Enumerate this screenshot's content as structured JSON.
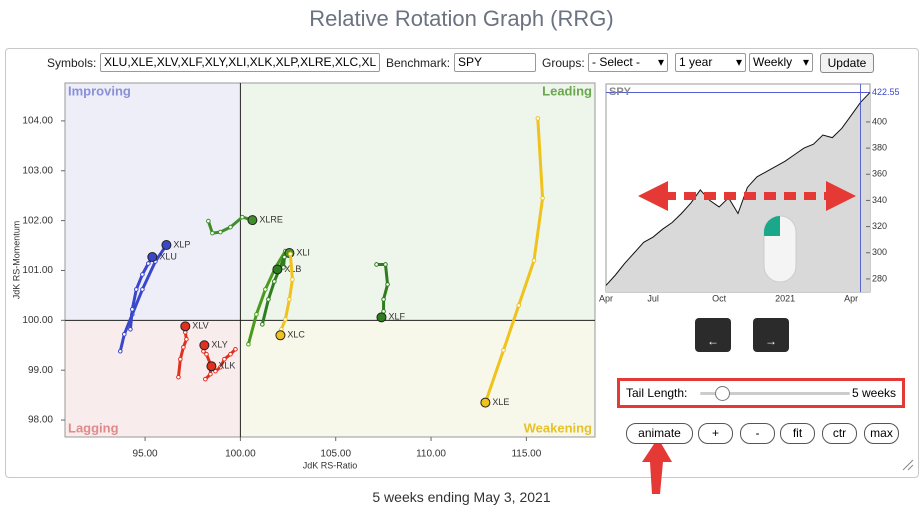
{
  "header": {
    "title": "Relative Rotation Graph (RRG)"
  },
  "toolbar": {
    "symbols_label": "Symbols:",
    "symbols": "XLU,XLE,XLV,XLF,XLY,XLI,XLK,XLP,XLRE,XLC,XL",
    "benchmark_label": "Benchmark:",
    "benchmark": "SPY",
    "groups_label": "Groups:",
    "groups": "- Select -",
    "period": "1 year",
    "frequency": "Weekly",
    "update": "Update"
  },
  "chart_data": [
    {
      "type": "scatter",
      "x_label": "JdK RS-Ratio",
      "y_label": "JdK RS-Momentum",
      "xlim": [
        90.8,
        118.6
      ],
      "ylim": [
        97.66,
        104.76
      ],
      "xticks": [
        {
          "value": 95,
          "label": "95.00"
        },
        {
          "value": 100,
          "label": "100.00"
        },
        {
          "value": 105,
          "label": "105.00"
        },
        {
          "value": 110,
          "label": "110.00"
        },
        {
          "value": 115,
          "label": "115.00"
        }
      ],
      "yticks": [
        {
          "value": 98,
          "label": "98.00"
        },
        {
          "value": 99,
          "label": "99.00"
        },
        {
          "value": 100,
          "label": "100.00"
        },
        {
          "value": 101,
          "label": "101.00"
        },
        {
          "value": 102,
          "label": "102.00"
        },
        {
          "value": 103,
          "label": "103.00"
        },
        {
          "value": 104,
          "label": "104.00"
        }
      ],
      "crosshair": [
        100,
        100
      ],
      "quadrants": [
        {
          "name": "Improving",
          "color": "#8a8fd6"
        },
        {
          "name": "Leading",
          "color": "#6aa84f"
        },
        {
          "name": "Lagging",
          "color": "#e08a8a"
        },
        {
          "name": "Weakening",
          "color": "#e6c229"
        }
      ],
      "series": [
        {
          "name": "XLE",
          "color": "#f0c21c",
          "x": [
            115.6,
            115.85,
            115.4,
            114.6,
            113.8,
            112.85
          ],
          "values": [
            104.05,
            102.45,
            101.2,
            100.3,
            99.4,
            98.35
          ]
        },
        {
          "name": "XLF",
          "color": "#2f7d1f",
          "x": [
            107.14,
            107.61,
            107.72,
            107.51,
            107.51,
            107.4
          ],
          "values": [
            101.12,
            101.12,
            100.72,
            100.42,
            100.18,
            100.06
          ]
        },
        {
          "name": "XLRE",
          "color": "#3e8e2a",
          "x": [
            98.32,
            98.53,
            98.95,
            99.48,
            100.1,
            100.63
          ],
          "values": [
            101.99,
            101.75,
            101.77,
            101.87,
            102.07,
            102.01
          ]
        },
        {
          "name": "XLI",
          "color": "#4a9a1e",
          "x": [
            100.42,
            100.84,
            101.31,
            101.84,
            102.36,
            102.57
          ],
          "values": [
            99.52,
            100.12,
            100.62,
            101.06,
            101.39,
            101.35
          ]
        },
        {
          "name": "XLB",
          "color": "#2e7d1f",
          "x": [
            101.15,
            101.47,
            101.78,
            102.31,
            102.26,
            101.94
          ],
          "values": [
            99.92,
            100.42,
            100.78,
            101.27,
            101.06,
            101.02
          ]
        },
        {
          "name": "XLC",
          "color": "#f0c21c",
          "x": [
            102.62,
            102.73,
            102.57,
            102.36,
            102.15,
            102.1
          ],
          "values": [
            101.33,
            100.82,
            100.42,
            100.02,
            99.82,
            99.7
          ]
        },
        {
          "name": "XLP",
          "color": "#3b47c9",
          "x": [
            93.7,
            93.91,
            94.33,
            94.86,
            95.54,
            96.12
          ],
          "values": [
            99.38,
            99.72,
            100.12,
            100.62,
            101.18,
            101.51
          ]
        },
        {
          "name": "XLU",
          "color": "#3b47c9",
          "x": [
            94.23,
            94.33,
            94.54,
            94.86,
            95.17,
            95.38
          ],
          "values": [
            99.82,
            100.22,
            100.62,
            100.92,
            101.14,
            101.27
          ]
        },
        {
          "name": "XLV",
          "color": "#e0301e",
          "x": [
            96.75,
            96.85,
            97.01,
            97.17,
            97.11,
            97.11
          ],
          "values": [
            98.86,
            99.22,
            99.46,
            99.62,
            99.76,
            99.88
          ]
        },
        {
          "name": "XLY",
          "color": "#e0301e",
          "x": [
            98.16,
            98.43,
            98.43,
            98.22,
            98.06,
            98.11
          ],
          "values": [
            98.82,
            98.92,
            99.12,
            99.32,
            99.38,
            99.5
          ]
        },
        {
          "name": "XLK",
          "color": "#e0301e",
          "x": [
            99.74,
            99.48,
            99.16,
            98.95,
            98.69,
            98.48
          ],
          "values": [
            99.42,
            99.32,
            99.22,
            99.06,
            98.98,
            99.08
          ]
        }
      ]
    },
    {
      "type": "line",
      "title": "SPY",
      "color": "#111111",
      "last_color": "#3b47c9",
      "categories": [
        "Apr",
        null,
        null,
        null,
        null,
        "Jul",
        null,
        null,
        null,
        null,
        null,
        null,
        "Oct",
        null,
        null,
        null,
        null,
        null,
        null,
        "2021",
        null,
        null,
        null,
        null,
        null,
        null,
        "Apr",
        null,
        null
      ],
      "values": [
        275,
        283,
        292,
        300,
        308,
        312,
        318,
        323,
        330,
        338,
        348,
        340,
        335,
        342,
        330,
        350,
        358,
        362,
        366,
        370,
        375,
        380,
        383,
        390,
        388,
        395,
        405,
        415,
        422.55
      ],
      "ylim": [
        270,
        429
      ],
      "yticks": [
        280,
        300,
        320,
        340,
        360,
        380,
        400
      ]
    }
  ],
  "controls": {
    "tail_label": "Tail Length:",
    "tail_value": "5 weeks",
    "buttons": [
      "animate",
      "+",
      "-",
      "fit",
      "ctr",
      "max"
    ]
  },
  "footer": "5 weeks ending May 3, 2021"
}
